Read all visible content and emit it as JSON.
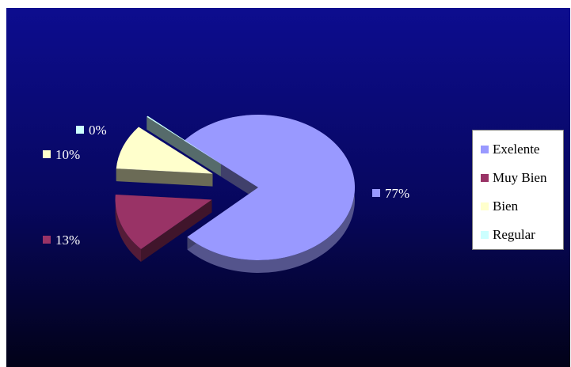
{
  "chart_data": {
    "type": "pie",
    "style": "exploded-3d",
    "title": "",
    "slices": [
      {
        "name": "Exelente",
        "value": 77,
        "label": "77%",
        "color": "#9999ff"
      },
      {
        "name": "Muy Bien",
        "value": 13,
        "label": "13%",
        "color": "#993366"
      },
      {
        "name": "Bien",
        "value": 10,
        "label": "10%",
        "color": "#ffffcc"
      },
      {
        "name": "Regular",
        "value": 0,
        "label": "0%",
        "color": "#ccffff"
      }
    ],
    "legend": {
      "position": "right",
      "entries": [
        "Exelente",
        "Muy Bien",
        "Bien",
        "Regular"
      ]
    },
    "background": {
      "top": "#0d0d8f",
      "bottom": "#020218"
    }
  }
}
